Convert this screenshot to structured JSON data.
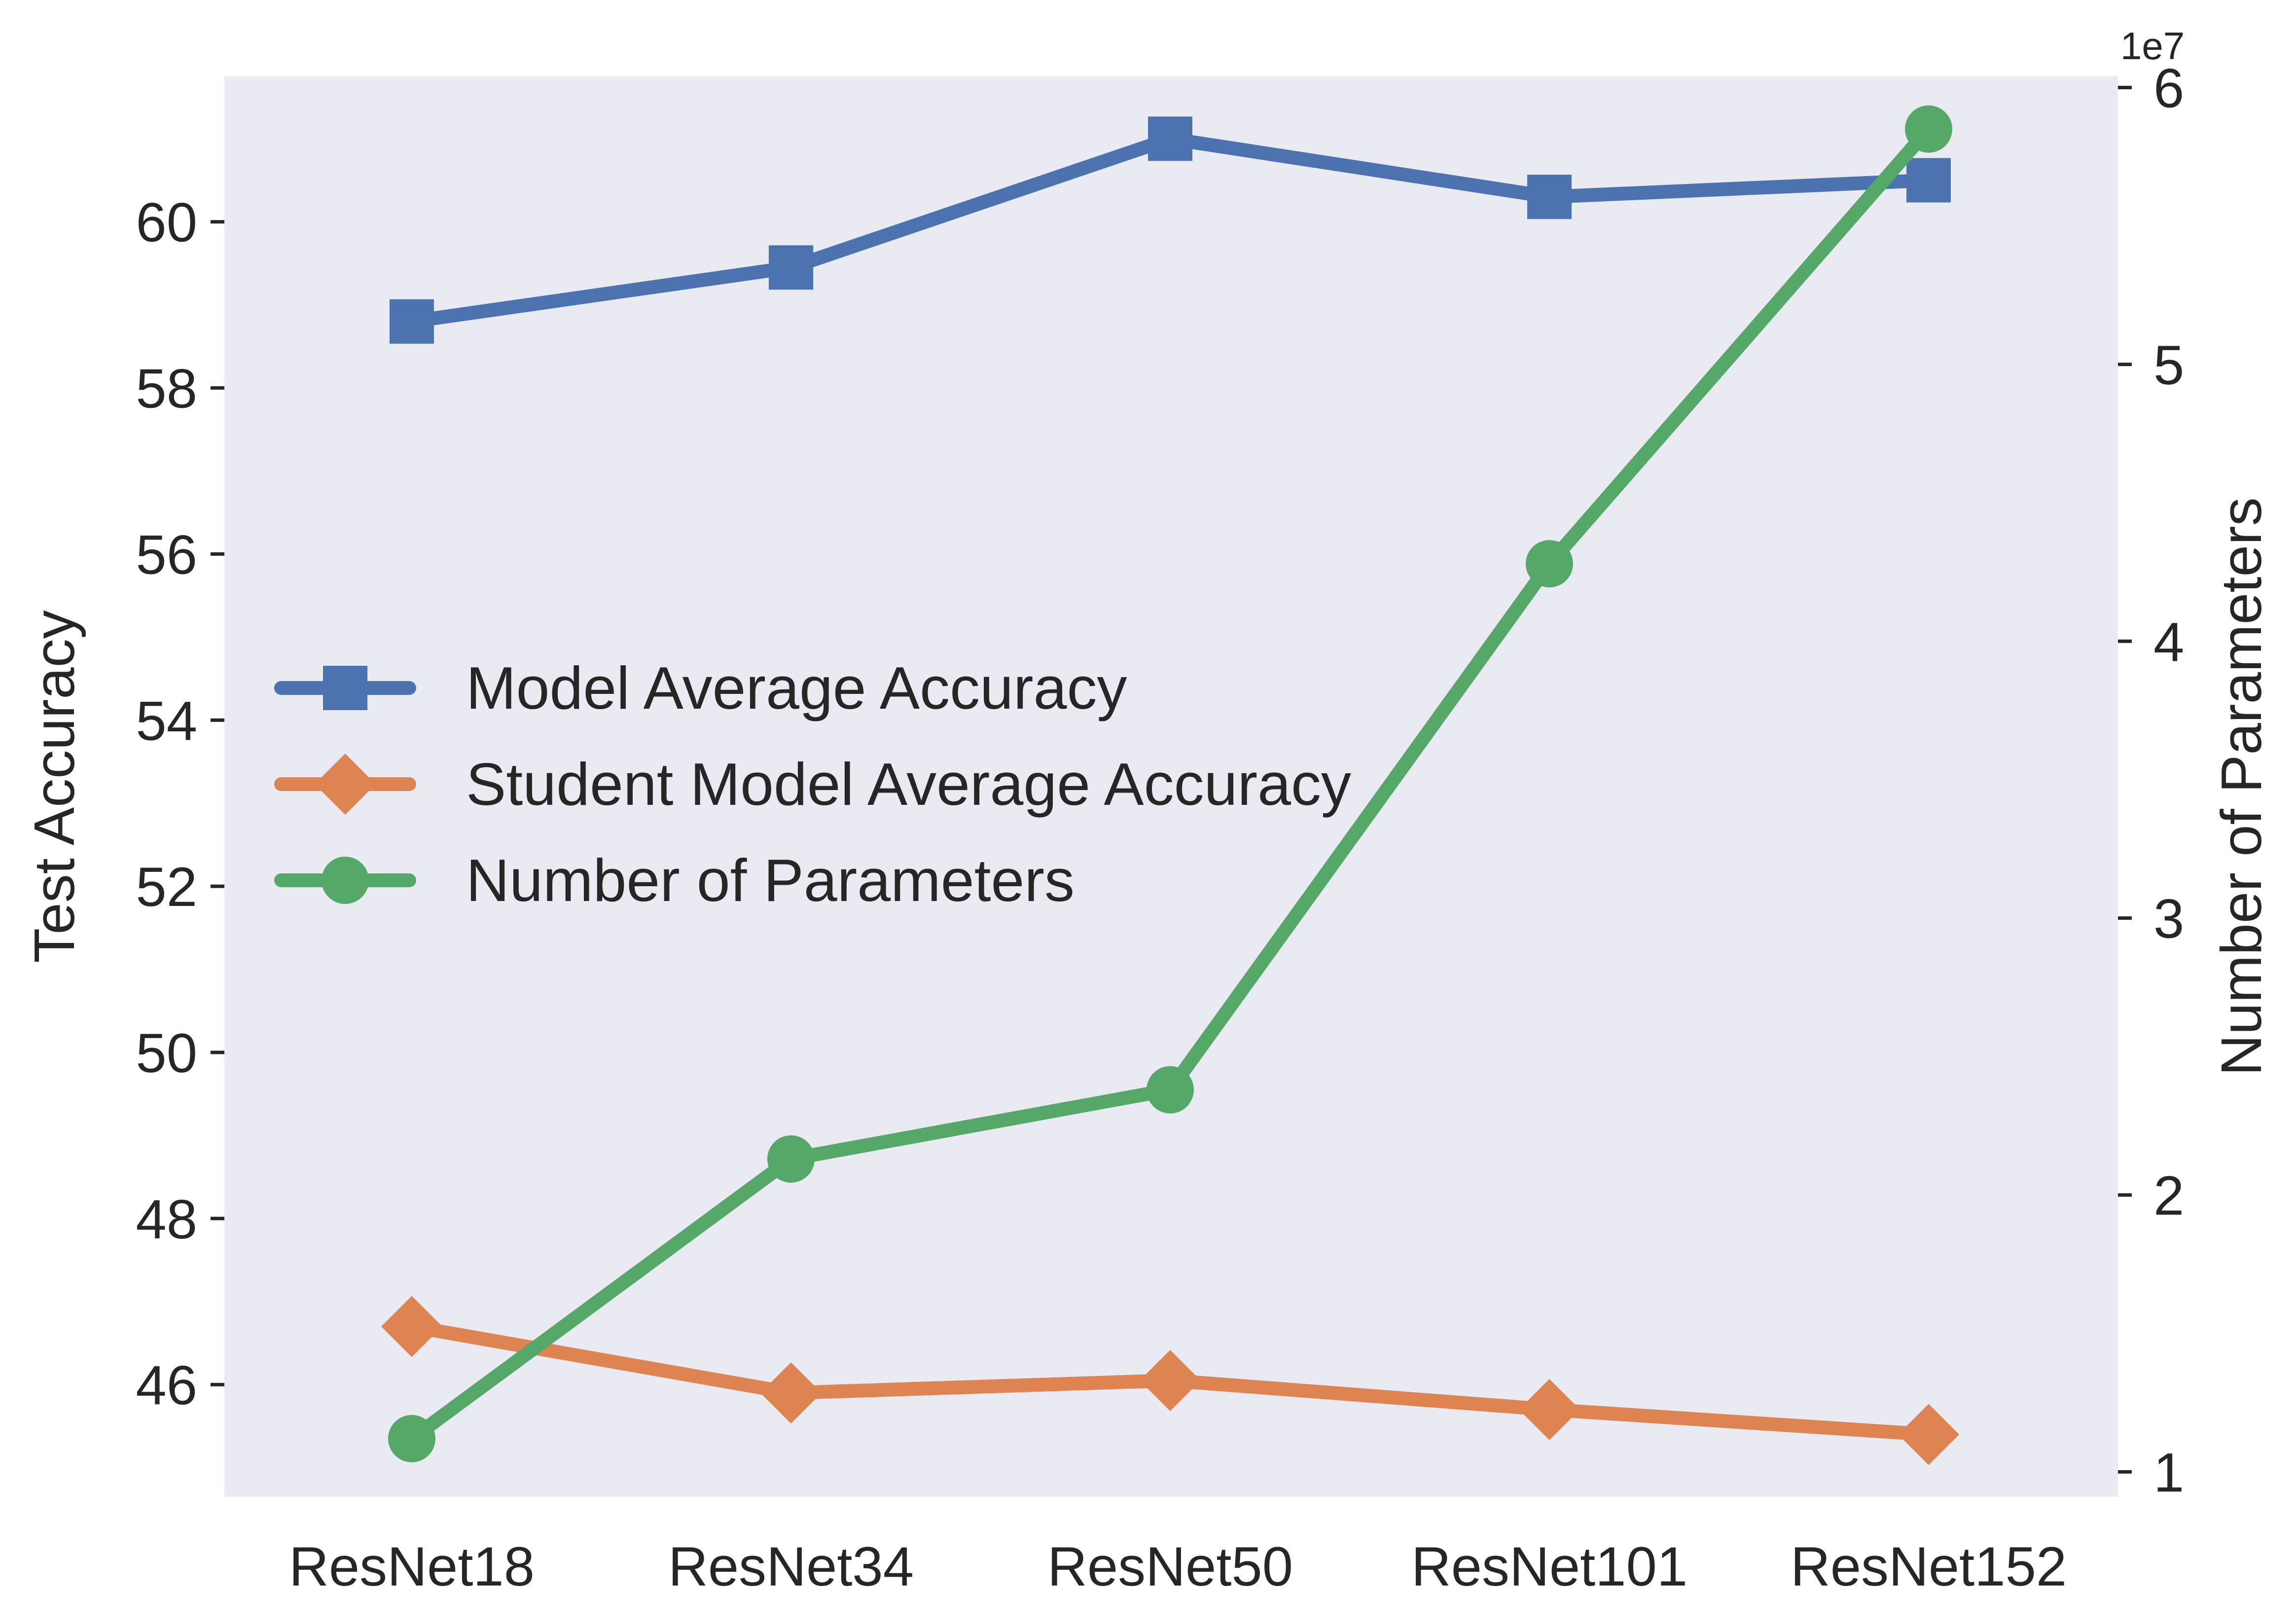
{
  "chart_data": {
    "type": "line",
    "categories": [
      "ResNet18",
      "ResNet34",
      "ResNet50",
      "ResNet101",
      "ResNet152"
    ],
    "ylabel_left": "Test Accuracy",
    "ylabel_right": "Number of Parameters",
    "right_axis_offset_label": "1e7",
    "ylim_left": [
      44.65,
      61.75
    ],
    "yticks_left": [
      46,
      48,
      50,
      52,
      54,
      56,
      58,
      60
    ],
    "ylim_right": [
      9100000,
      60400000
    ],
    "yticks_right": [
      1,
      2,
      3,
      4,
      5,
      6
    ],
    "yticks_right_multiplier": 10000000,
    "grid": false,
    "legend_position": "center-left",
    "series": [
      {
        "name": "Model Average Accuracy",
        "axis": "left",
        "marker": "square",
        "color": "#4c72b0",
        "values": [
          58.8,
          59.45,
          61.0,
          60.3,
          60.5
        ]
      },
      {
        "name": "Student Model Average Accuracy",
        "axis": "left",
        "marker": "diamond",
        "color": "#dd8452",
        "values": [
          46.7,
          45.9,
          46.05,
          45.7,
          45.4
        ]
      },
      {
        "name": "Number of Parameters",
        "axis": "right",
        "marker": "circle",
        "color": "#55a868",
        "values": [
          11200000,
          21300000,
          23800000,
          42800000,
          58500000
        ]
      }
    ]
  },
  "colors": {
    "plot_background": "#eaeaf2",
    "text": "#262626"
  }
}
